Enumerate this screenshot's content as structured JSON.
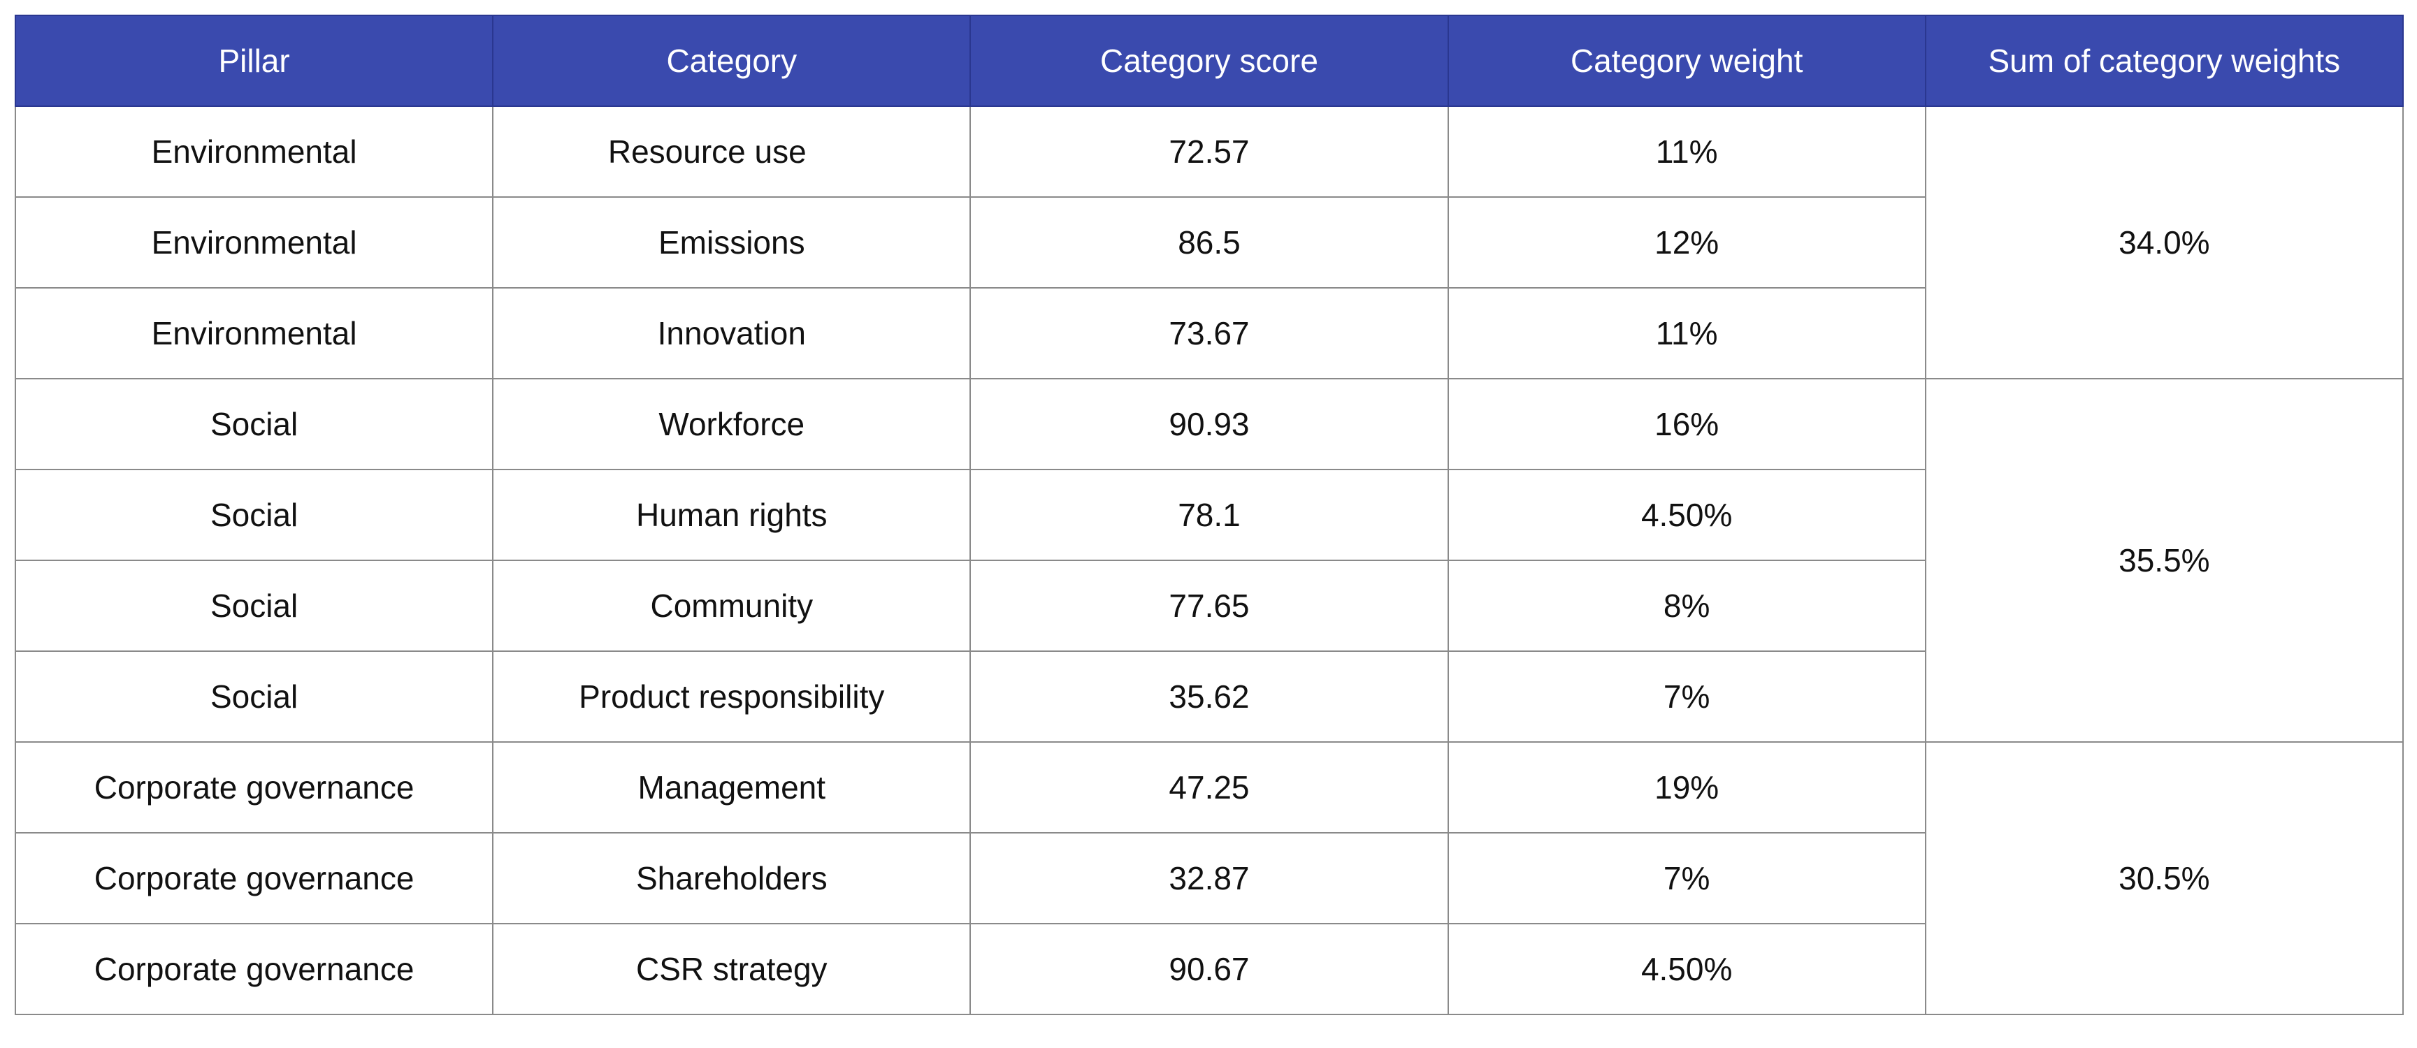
{
  "table": {
    "headers": [
      "Pillar",
      "Category",
      "Category score",
      "Category weight",
      "Sum of category weights"
    ],
    "rows": [
      {
        "pillar": "Environmental",
        "category": "Resource use",
        "score": "72.57",
        "weight": "11%"
      },
      {
        "pillar": "Environmental",
        "category": "Emissions",
        "score": "86.5",
        "weight": "12%"
      },
      {
        "pillar": "Environmental",
        "category": "Innovation",
        "score": "73.67",
        "weight": "11%"
      },
      {
        "pillar": "Social",
        "category": "Workforce",
        "score": "90.93",
        "weight": "16%"
      },
      {
        "pillar": "Social",
        "category": "Human rights",
        "score": "78.1",
        "weight": "4.50%"
      },
      {
        "pillar": "Social",
        "category": "Community",
        "score": "77.65",
        "weight": "8%"
      },
      {
        "pillar": "Social",
        "category": "Product responsibility",
        "score": "35.62",
        "weight": "7%"
      },
      {
        "pillar": "Corporate governance",
        "category": "Management",
        "score": "47.25",
        "weight": "19%"
      },
      {
        "pillar": "Corporate governance",
        "category": "Shareholders",
        "score": "32.87",
        "weight": "7%"
      },
      {
        "pillar": "Corporate governance",
        "category": "CSR strategy",
        "score": "90.67",
        "weight": "4.50%"
      }
    ],
    "sums": [
      "34.0%",
      "35.5%",
      "30.5%"
    ]
  }
}
